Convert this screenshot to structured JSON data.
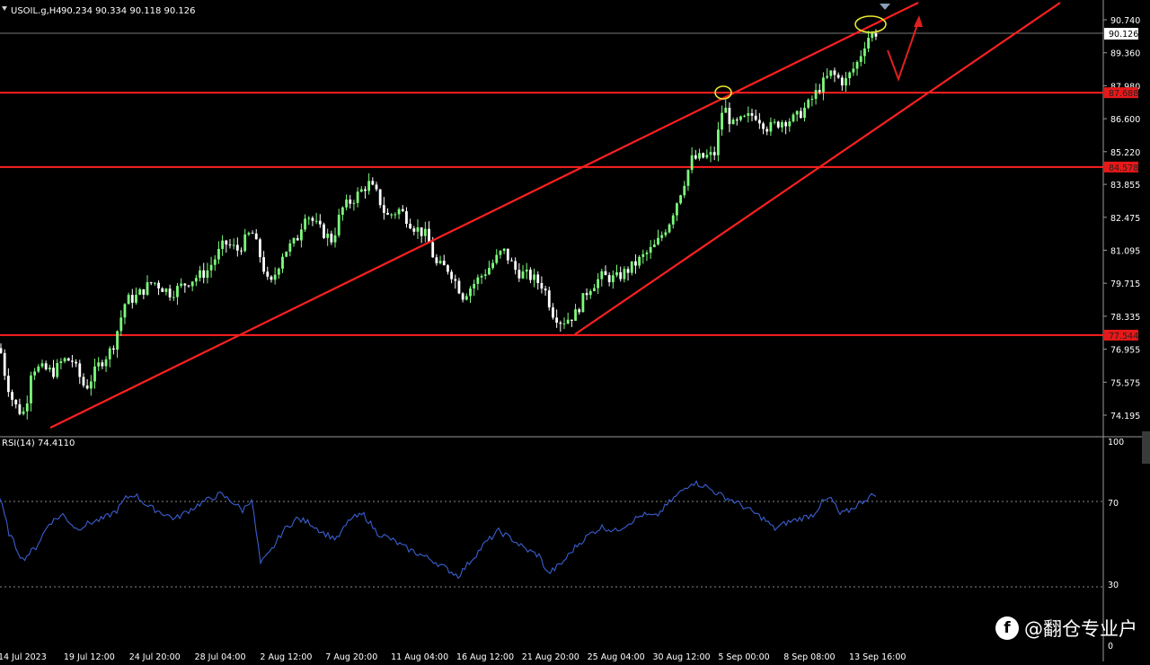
{
  "header": {
    "symbol_text": "USOIL.g,H4",
    "ohlc_text": "90.234 90.334 90.118 90.126"
  },
  "rsi_panel": {
    "label": "RSI(14) 74.4110",
    "levels": [
      "100",
      "70",
      "30",
      "0"
    ]
  },
  "watermark": {
    "text": "@翻仓专业户",
    "logo_glyph": "f"
  },
  "colors": {
    "background": "#000000",
    "candle_bull": "#7CFC7C",
    "candle_bear": "#ffffff",
    "trendline": "#ff2020",
    "rsi_line": "#3a5fd0",
    "ellipse": "#e8e830",
    "arrow": "#e02020"
  },
  "chart_data": [
    {
      "type": "candlestick",
      "symbol": "USOIL.g",
      "timeframe": "H4",
      "ylim": [
        73.5,
        91.5
      ],
      "y_ticks": [
        "90.740",
        "89.360",
        "87.980",
        "86.600",
        "85.220",
        "83.855",
        "82.475",
        "81.095",
        "79.715",
        "78.335",
        "76.955",
        "75.575",
        "74.195"
      ],
      "x_ticks": [
        "14 Jul 2023",
        "19 Jul 12:00",
        "24 Jul 20:00",
        "28 Jul 04:00",
        "2 Aug 12:00",
        "7 Aug 20:00",
        "11 Aug 04:00",
        "16 Aug 12:00",
        "21 Aug 20:00",
        "25 Aug 04:00",
        "30 Aug 12:00",
        "5 Sep 00:00",
        "8 Sep 08:00",
        "13 Sep 16:00"
      ],
      "current_price": "90.126",
      "horizontal_levels": [
        "87.688",
        "84.578",
        "77.544"
      ],
      "anchors": [
        [
          0,
          77.0
        ],
        [
          5,
          76.0
        ],
        [
          12,
          75.0
        ],
        [
          20,
          74.4
        ],
        [
          28,
          74.3
        ],
        [
          35,
          76.2
        ],
        [
          50,
          76.1
        ],
        [
          60,
          76.0
        ],
        [
          70,
          76.5
        ],
        [
          80,
          76.5
        ],
        [
          95,
          75.3
        ],
        [
          110,
          76.3
        ],
        [
          125,
          77.0
        ],
        [
          140,
          79.0
        ],
        [
          150,
          79.1
        ],
        [
          170,
          79.8
        ],
        [
          190,
          79.3
        ],
        [
          210,
          79.8
        ],
        [
          230,
          80.2
        ],
        [
          250,
          81.4
        ],
        [
          265,
          81.1
        ],
        [
          280,
          81.9
        ],
        [
          290,
          80.8
        ],
        [
          300,
          79.5
        ],
        [
          315,
          81.0
        ],
        [
          330,
          81.5
        ],
        [
          340,
          82.7
        ],
        [
          355,
          82.0
        ],
        [
          370,
          81.5
        ],
        [
          380,
          82.8
        ],
        [
          395,
          83.3
        ],
        [
          410,
          83.9
        ],
        [
          420,
          83.4
        ],
        [
          430,
          82.5
        ],
        [
          445,
          82.8
        ],
        [
          460,
          82.1
        ],
        [
          475,
          81.7
        ],
        [
          485,
          80.5
        ],
        [
          500,
          80.3
        ],
        [
          515,
          79.2
        ],
        [
          530,
          79.8
        ],
        [
          545,
          80.4
        ],
        [
          560,
          81.1
        ],
        [
          575,
          80.2
        ],
        [
          590,
          80.0
        ],
        [
          605,
          79.6
        ],
        [
          615,
          78.5
        ],
        [
          625,
          78.1
        ],
        [
          640,
          78.4
        ],
        [
          655,
          79.5
        ],
        [
          670,
          80.0
        ],
        [
          685,
          79.9
        ],
        [
          700,
          80.3
        ],
        [
          715,
          80.8
        ],
        [
          730,
          81.3
        ],
        [
          745,
          82.3
        ],
        [
          760,
          83.8
        ],
        [
          770,
          84.9
        ],
        [
          785,
          85.0
        ],
        [
          795,
          85.1
        ],
        [
          805,
          87.2
        ],
        [
          815,
          86.3
        ],
        [
          825,
          86.5
        ],
        [
          840,
          86.8
        ],
        [
          855,
          86.2
        ],
        [
          870,
          86.5
        ],
        [
          885,
          86.6
        ],
        [
          900,
          87.2
        ],
        [
          912,
          87.9
        ],
        [
          925,
          88.5
        ],
        [
          940,
          88.1
        ],
        [
          955,
          89.0
        ],
        [
          965,
          90.0
        ],
        [
          975,
          90.2
        ]
      ]
    },
    {
      "type": "line",
      "name": "RSI(14)",
      "ylim": [
        0,
        100
      ],
      "levels": [
        70,
        30
      ],
      "anchors": [
        [
          0,
          72
        ],
        [
          10,
          55
        ],
        [
          25,
          42
        ],
        [
          40,
          48
        ],
        [
          55,
          60
        ],
        [
          70,
          64
        ],
        [
          85,
          57
        ],
        [
          100,
          60
        ],
        [
          115,
          62
        ],
        [
          130,
          66
        ],
        [
          140,
          72
        ],
        [
          150,
          74
        ],
        [
          165,
          68
        ],
        [
          180,
          65
        ],
        [
          195,
          62
        ],
        [
          210,
          66
        ],
        [
          225,
          70
        ],
        [
          245,
          74
        ],
        [
          260,
          70
        ],
        [
          270,
          66
        ],
        [
          280,
          72
        ],
        [
          290,
          40
        ],
        [
          300,
          45
        ],
        [
          315,
          56
        ],
        [
          330,
          62
        ],
        [
          345,
          60
        ],
        [
          360,
          55
        ],
        [
          375,
          52
        ],
        [
          390,
          62
        ],
        [
          405,
          64
        ],
        [
          420,
          55
        ],
        [
          435,
          52
        ],
        [
          450,
          48
        ],
        [
          465,
          45
        ],
        [
          480,
          42
        ],
        [
          495,
          38
        ],
        [
          510,
          34
        ],
        [
          525,
          42
        ],
        [
          540,
          50
        ],
        [
          555,
          56
        ],
        [
          570,
          52
        ],
        [
          585,
          47
        ],
        [
          600,
          44
        ],
        [
          610,
          35
        ],
        [
          625,
          40
        ],
        [
          640,
          48
        ],
        [
          655,
          54
        ],
        [
          670,
          58
        ],
        [
          685,
          56
        ],
        [
          700,
          60
        ],
        [
          715,
          64
        ],
        [
          730,
          63
        ],
        [
          745,
          70
        ],
        [
          760,
          76
        ],
        [
          770,
          80
        ],
        [
          785,
          78
        ],
        [
          800,
          74
        ],
        [
          810,
          72
        ],
        [
          820,
          70
        ],
        [
          835,
          66
        ],
        [
          850,
          62
        ],
        [
          862,
          57
        ],
        [
          875,
          60
        ],
        [
          890,
          62
        ],
        [
          905,
          64
        ],
        [
          915,
          70
        ],
        [
          925,
          72
        ],
        [
          935,
          64
        ],
        [
          945,
          66
        ],
        [
          955,
          69
        ],
        [
          965,
          72
        ],
        [
          975,
          74.4
        ]
      ]
    }
  ]
}
